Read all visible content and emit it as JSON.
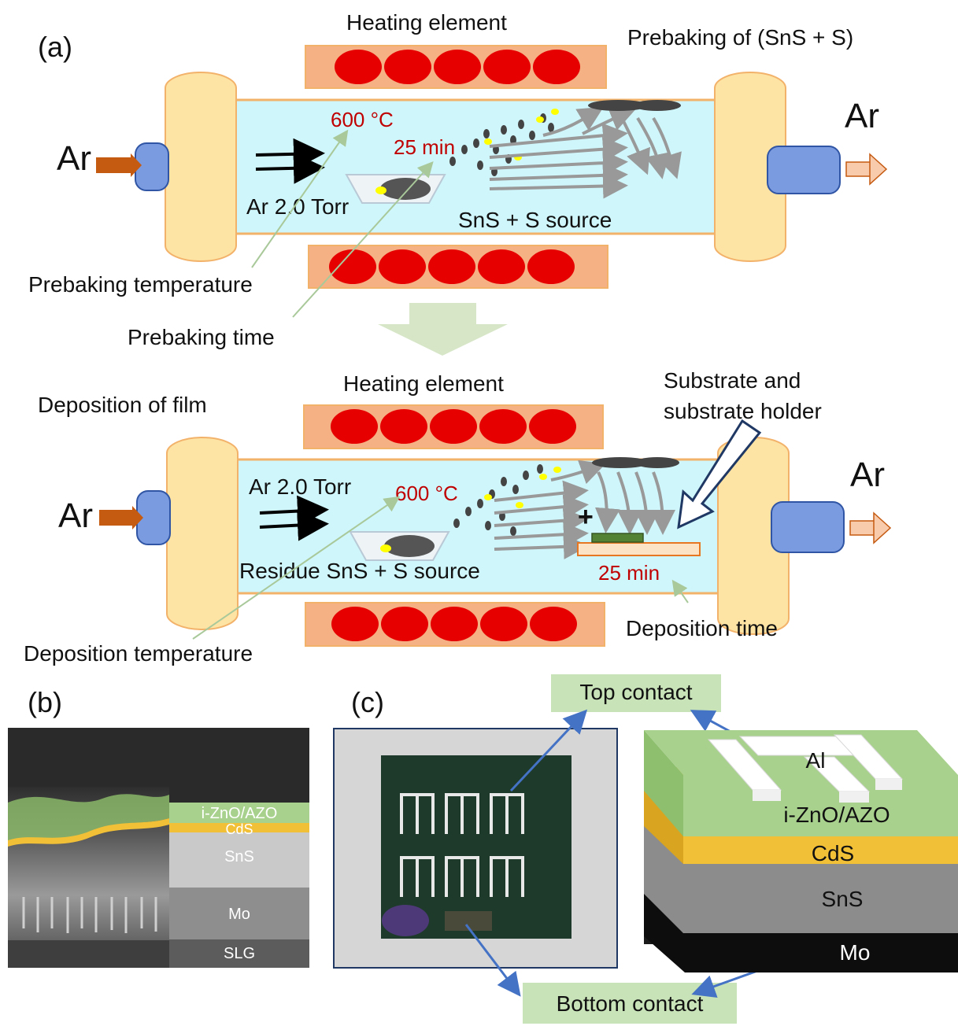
{
  "panels": {
    "a": "(a)",
    "b": "(b)",
    "c": "(c)"
  },
  "top": {
    "heating": "Heating element",
    "title": "Prebaking of (SnS + S)",
    "ar_in": "Ar",
    "ar_out": "Ar",
    "temp": "600 °C",
    "time": "25 min",
    "pressure": "Ar 2.0 Torr",
    "source": "SnS + S source",
    "note_temp": "Prebaking temperature",
    "note_time": "Prebaking time"
  },
  "bottom": {
    "heating": "Heating element",
    "title": "Deposition of film",
    "ar_in": "Ar",
    "ar_out": "Ar",
    "pressure": "Ar 2.0 Torr",
    "temp": "600 °C",
    "plus": "+",
    "source": "Residue SnS + S source",
    "time": "25 min",
    "substrate_line1": "Substrate and",
    "substrate_line2": "substrate holder",
    "note_time": "Deposition time",
    "note_temp": "Deposition temperature"
  },
  "sem_layers": [
    "i-ZnO/AZO",
    "CdS",
    "SnS",
    "Mo",
    "SLG"
  ],
  "device": {
    "top_contact": "Top contact",
    "bottom_contact": "Bottom contact",
    "al": "Al",
    "layers": [
      "i-ZnO/AZO",
      "CdS",
      "SnS",
      "Mo"
    ]
  },
  "colors": {
    "tube": "#cff6fb",
    "flange": "#fde3a4",
    "heater": "#f5b183",
    "coil": "#e60000",
    "zno": "#a9d18e",
    "cds": "#f2c037",
    "sns": "#8c8c8c",
    "mo": "#1a1a1a",
    "label_box": "#c8e3b8"
  }
}
